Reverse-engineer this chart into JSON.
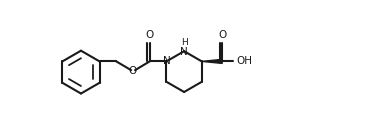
{
  "bg_color": "#ffffff",
  "line_color": "#1a1a1a",
  "line_width": 1.5,
  "fig_width": 3.68,
  "fig_height": 1.34,
  "dpi": 100,
  "xlim": [
    0,
    13.5
  ],
  "ylim": [
    -0.5,
    6.0
  ]
}
